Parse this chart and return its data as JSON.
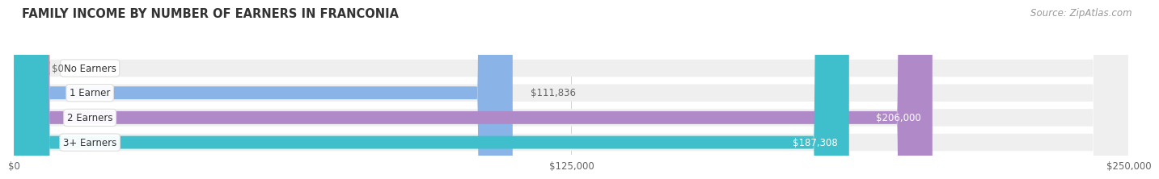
{
  "title": "FAMILY INCOME BY NUMBER OF EARNERS IN FRANCONIA",
  "source": "Source: ZipAtlas.com",
  "categories": [
    "No Earners",
    "1 Earner",
    "2 Earners",
    "3+ Earners"
  ],
  "values": [
    0,
    111836,
    206000,
    187308
  ],
  "labels": [
    "$0",
    "$111,836",
    "$206,000",
    "$187,308"
  ],
  "bar_colors": [
    "#e8908a",
    "#8ab4e8",
    "#b08ac8",
    "#3fbfcc"
  ],
  "bar_bg_color": "#efefef",
  "label_in_bar": [
    false,
    false,
    true,
    true
  ],
  "max_value": 250000,
  "xticks": [
    0,
    125000,
    250000
  ],
  "xtick_labels": [
    "$0",
    "$125,000",
    "$250,000"
  ],
  "title_fontsize": 10.5,
  "source_fontsize": 8.5,
  "bar_label_fontsize": 8.5,
  "category_fontsize": 8.5,
  "xtick_fontsize": 8.5,
  "bg_color": "#ffffff"
}
